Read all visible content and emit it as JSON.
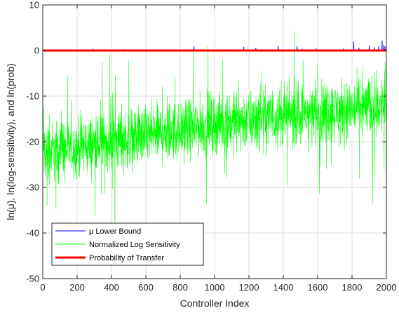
{
  "chart_data": {
    "type": "line",
    "xlabel": "Controller Index",
    "ylabel": "ln(μ), ln(log-sensitivity), and ln(prob)",
    "xlim": [
      0,
      2000
    ],
    "ylim": [
      -50,
      10
    ],
    "x_ticks": [
      0,
      200,
      400,
      600,
      800,
      1000,
      1200,
      1400,
      1600,
      1800,
      2000
    ],
    "y_ticks": [
      -50,
      -40,
      -30,
      -20,
      -10,
      0,
      10
    ],
    "grid": true,
    "legend_position": "bottom-left",
    "n_points": 2000,
    "series": [
      {
        "name": "μ Lower Bound",
        "color": "#0000ff",
        "baseline": 0,
        "spikes": [
          {
            "x": 290,
            "y": 0.4
          },
          {
            "x": 470,
            "y": 0.3
          },
          {
            "x": 880,
            "y": 0.9
          },
          {
            "x": 1090,
            "y": 0.3
          },
          {
            "x": 1170,
            "y": 0.8
          },
          {
            "x": 1240,
            "y": 0.6
          },
          {
            "x": 1370,
            "y": 1.0
          },
          {
            "x": 1480,
            "y": 0.9
          },
          {
            "x": 1510,
            "y": 0.4
          },
          {
            "x": 1590,
            "y": 0.5
          },
          {
            "x": 1750,
            "y": 0.4
          },
          {
            "x": 1810,
            "y": 2.0
          },
          {
            "x": 1840,
            "y": 0.6
          },
          {
            "x": 1900,
            "y": 1.1
          },
          {
            "x": 1930,
            "y": 0.7
          },
          {
            "x": 1955,
            "y": 0.9
          },
          {
            "x": 1975,
            "y": 2.2
          },
          {
            "x": 1985,
            "y": 1.2
          },
          {
            "x": 1992,
            "y": 0.9
          }
        ]
      },
      {
        "name": "Normalized Log Sensitivity",
        "color": "#00ff00",
        "trend": [
          {
            "x": 0,
            "y": -22.5
          },
          {
            "x": 1000,
            "y": -16
          },
          {
            "x": 2000,
            "y": -12
          }
        ],
        "noise_amplitude": 3.2,
        "notable_points": [
          {
            "x": 5,
            "y": -12.5
          },
          {
            "x": 25,
            "y": -34
          },
          {
            "x": 420,
            "y": -38.5
          },
          {
            "x": 770,
            "y": -5.5
          },
          {
            "x": 1600,
            "y": -3
          },
          {
            "x": 1610,
            "y": -31.5
          },
          {
            "x": 1920,
            "y": -33.5
          },
          {
            "x": 1990,
            "y": -4.5
          }
        ]
      },
      {
        "name": "Probability of Transfer",
        "color": "#ff0000",
        "values_constant": 0
      }
    ]
  }
}
